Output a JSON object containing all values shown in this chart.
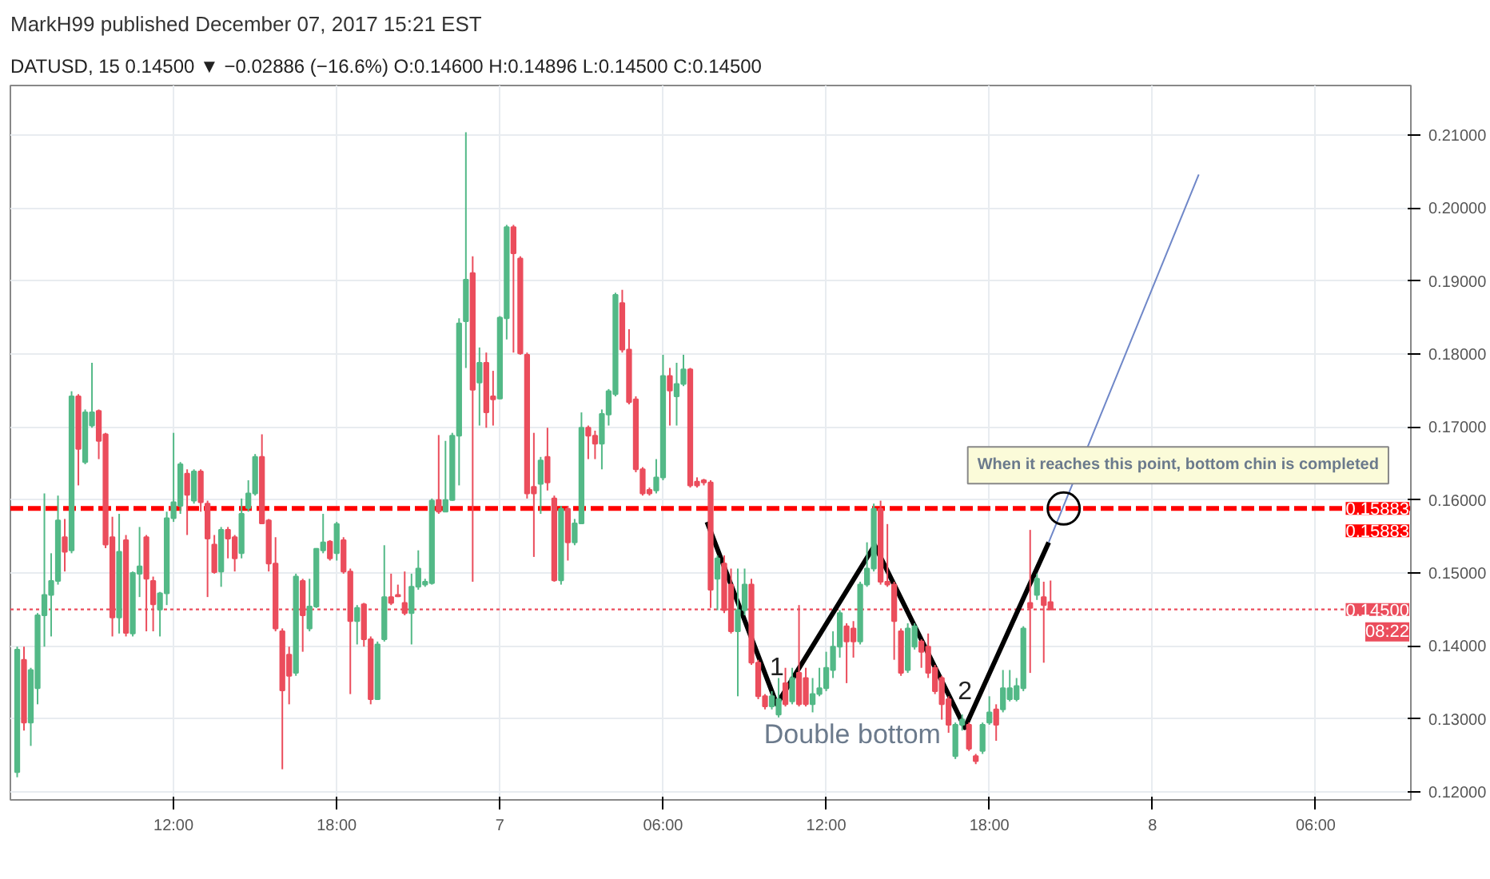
{
  "chart_data": {
    "type": "candlestick",
    "title": "MarkH99 published December 07, 2017 15:21 EST",
    "subtitle": "DATUSD, 15  0.14500 ▼ −0.02886 (−16.6%) O:0.14600 H:0.14896 L:0.14500 C:0.14500",
    "x": [
      "2017-12-06T06:15",
      "2017-12-06T06:30",
      "2017-12-06T06:45",
      "2017-12-06T07:00",
      "2017-12-06T07:15",
      "2017-12-06T07:30",
      "2017-12-06T07:45",
      "2017-12-06T08:00",
      "2017-12-06T08:15",
      "2017-12-06T08:30",
      "2017-12-06T08:45",
      "2017-12-06T09:00",
      "2017-12-06T09:15",
      "2017-12-06T09:30",
      "2017-12-06T09:45",
      "2017-12-06T10:00",
      "2017-12-06T10:15",
      "2017-12-06T10:30",
      "2017-12-06T10:45",
      "2017-12-06T11:00",
      "2017-12-06T11:15",
      "2017-12-06T11:30",
      "2017-12-06T11:45",
      "2017-12-06T12:00",
      "2017-12-06T12:15",
      "2017-12-06T12:30",
      "2017-12-06T12:45",
      "2017-12-06T13:00",
      "2017-12-06T13:15",
      "2017-12-06T13:30",
      "2017-12-06T13:45",
      "2017-12-06T14:00",
      "2017-12-06T14:15",
      "2017-12-06T14:30",
      "2017-12-06T14:45",
      "2017-12-06T15:00",
      "2017-12-06T15:15",
      "2017-12-06T15:30",
      "2017-12-06T15:45",
      "2017-12-06T16:00",
      "2017-12-06T16:15",
      "2017-12-06T16:30",
      "2017-12-06T16:45",
      "2017-12-06T17:00",
      "2017-12-06T17:15",
      "2017-12-06T17:30",
      "2017-12-06T17:45",
      "2017-12-06T18:00",
      "2017-12-06T18:15",
      "2017-12-06T18:30",
      "2017-12-06T18:45",
      "2017-12-06T19:00",
      "2017-12-06T19:15",
      "2017-12-06T19:30",
      "2017-12-06T19:45",
      "2017-12-06T20:00",
      "2017-12-06T20:15",
      "2017-12-06T20:30",
      "2017-12-06T20:45",
      "2017-12-06T21:00",
      "2017-12-06T21:15",
      "2017-12-06T21:30",
      "2017-12-06T21:45",
      "2017-12-06T22:00",
      "2017-12-06T22:15",
      "2017-12-06T22:30",
      "2017-12-06T22:45",
      "2017-12-06T23:00",
      "2017-12-06T23:15",
      "2017-12-06T23:30",
      "2017-12-06T23:45",
      "2017-12-07T00:00",
      "2017-12-07T00:15",
      "2017-12-07T00:30",
      "2017-12-07T00:45",
      "2017-12-07T01:00",
      "2017-12-07T01:15",
      "2017-12-07T01:30",
      "2017-12-07T01:45",
      "2017-12-07T02:00",
      "2017-12-07T02:15",
      "2017-12-07T02:30",
      "2017-12-07T02:45",
      "2017-12-07T03:00",
      "2017-12-07T03:15",
      "2017-12-07T03:30",
      "2017-12-07T03:45",
      "2017-12-07T04:00",
      "2017-12-07T04:15",
      "2017-12-07T04:30",
      "2017-12-07T04:45",
      "2017-12-07T05:00",
      "2017-12-07T05:15",
      "2017-12-07T05:30",
      "2017-12-07T05:45",
      "2017-12-07T06:00",
      "2017-12-07T06:15",
      "2017-12-07T06:30",
      "2017-12-07T06:45",
      "2017-12-07T07:00",
      "2017-12-07T07:15",
      "2017-12-07T07:30",
      "2017-12-07T07:45",
      "2017-12-07T08:00",
      "2017-12-07T08:15",
      "2017-12-07T08:30",
      "2017-12-07T08:45",
      "2017-12-07T09:00",
      "2017-12-07T09:15",
      "2017-12-07T09:30",
      "2017-12-07T09:45",
      "2017-12-07T10:00",
      "2017-12-07T10:15",
      "2017-12-07T10:30",
      "2017-12-07T10:45",
      "2017-12-07T11:00",
      "2017-12-07T11:15",
      "2017-12-07T11:30",
      "2017-12-07T11:45",
      "2017-12-07T12:00",
      "2017-12-07T12:15",
      "2017-12-07T12:30",
      "2017-12-07T12:45",
      "2017-12-07T13:00",
      "2017-12-07T13:15",
      "2017-12-07T13:30",
      "2017-12-07T13:45",
      "2017-12-07T14:00",
      "2017-12-07T14:15",
      "2017-12-07T14:30",
      "2017-12-07T14:45",
      "2017-12-07T15:00",
      "2017-12-07T15:15",
      "2017-12-07T15:30",
      "2017-12-07T15:45",
      "2017-12-07T16:00",
      "2017-12-07T16:15",
      "2017-12-07T16:30",
      "2017-12-07T16:45",
      "2017-12-07T17:00",
      "2017-12-07T17:15",
      "2017-12-07T17:30",
      "2017-12-07T17:45",
      "2017-12-07T18:00",
      "2017-12-07T18:15",
      "2017-12-07T18:30",
      "2017-12-07T18:45",
      "2017-12-07T19:00",
      "2017-12-07T19:15",
      "2017-12-07T19:30",
      "2017-12-07T19:45",
      "2017-12-07T20:00",
      "2017-12-07T20:15"
    ],
    "ohlc": [
      [
        0.1227,
        0.1399,
        0.122,
        0.1395
      ],
      [
        0.1381,
        0.1399,
        0.1284,
        0.1295
      ],
      [
        0.1295,
        0.137,
        0.1263,
        0.1367
      ],
      [
        0.1342,
        0.1445,
        0.132,
        0.1442
      ],
      [
        0.1442,
        0.1609,
        0.1399,
        0.147
      ],
      [
        0.147,
        0.1527,
        0.1413,
        0.1489
      ],
      [
        0.1489,
        0.1606,
        0.1484,
        0.1572
      ],
      [
        0.1549,
        0.1574,
        0.1502,
        0.1529
      ],
      [
        0.1531,
        0.1749,
        0.1527,
        0.1742
      ],
      [
        0.1742,
        0.1745,
        0.162,
        0.167
      ],
      [
        0.1652,
        0.1724,
        0.1649,
        0.172
      ],
      [
        0.1702,
        0.1788,
        0.1699,
        0.172
      ],
      [
        0.1722,
        0.1724,
        0.1656,
        0.1681
      ],
      [
        0.169,
        0.1692,
        0.1534,
        0.1539
      ],
      [
        0.1549,
        0.1577,
        0.1413,
        0.1439
      ],
      [
        0.1439,
        0.1581,
        0.1417,
        0.1529
      ],
      [
        0.1545,
        0.1552,
        0.1413,
        0.1418
      ],
      [
        0.1417,
        0.1502,
        0.1413,
        0.15
      ],
      [
        0.1499,
        0.1563,
        0.1467,
        0.1509
      ],
      [
        0.1549,
        0.1552,
        0.142,
        0.1492
      ],
      [
        0.1489,
        0.1495,
        0.142,
        0.1457
      ],
      [
        0.145,
        0.1474,
        0.1413,
        0.1472
      ],
      [
        0.1472,
        0.1584,
        0.1456,
        0.1575
      ],
      [
        0.1575,
        0.1692,
        0.157,
        0.1597
      ],
      [
        0.1592,
        0.1652,
        0.1581,
        0.1649
      ],
      [
        0.1636,
        0.1642,
        0.1552,
        0.1607
      ],
      [
        0.1599,
        0.1642,
        0.1595,
        0.1639
      ],
      [
        0.1639,
        0.1642,
        0.1584,
        0.1597
      ],
      [
        0.1595,
        0.1599,
        0.1467,
        0.1547
      ],
      [
        0.1539,
        0.1552,
        0.1499,
        0.1501
      ],
      [
        0.1502,
        0.1563,
        0.1481,
        0.1559
      ],
      [
        0.1559,
        0.1563,
        0.152,
        0.1547
      ],
      [
        0.1549,
        0.1552,
        0.1502,
        0.152
      ],
      [
        0.1527,
        0.1602,
        0.152,
        0.1581
      ],
      [
        0.1589,
        0.1627,
        0.1584,
        0.1609
      ],
      [
        0.1609,
        0.1663,
        0.1606,
        0.1659
      ],
      [
        0.1659,
        0.169,
        0.1567,
        0.1568
      ],
      [
        0.1572,
        0.1574,
        0.1502,
        0.1513
      ],
      [
        0.1513,
        0.1549,
        0.142,
        0.1424
      ],
      [
        0.142,
        0.1424,
        0.1231,
        0.1339
      ],
      [
        0.1388,
        0.1399,
        0.132,
        0.1359
      ],
      [
        0.1363,
        0.1499,
        0.1359,
        0.1495
      ],
      [
        0.1489,
        0.1492,
        0.1392,
        0.1442
      ],
      [
        0.1424,
        0.1492,
        0.142,
        0.1454
      ],
      [
        0.1454,
        0.1534,
        0.1452,
        0.1533
      ],
      [
        0.1531,
        0.1581,
        0.1527,
        0.1542
      ],
      [
        0.1543,
        0.1545,
        0.1517,
        0.152
      ],
      [
        0.1527,
        0.157,
        0.1517,
        0.1567
      ],
      [
        0.1545,
        0.1549,
        0.1499,
        0.1502
      ],
      [
        0.1502,
        0.1506,
        0.1334,
        0.1434
      ],
      [
        0.1434,
        0.1456,
        0.1402,
        0.1452
      ],
      [
        0.1457,
        0.1459,
        0.1399,
        0.1409
      ],
      [
        0.1409,
        0.1413,
        0.132,
        0.1327
      ],
      [
        0.1327,
        0.1406,
        0.1327,
        0.1402
      ],
      [
        0.1409,
        0.1538,
        0.1406,
        0.1467
      ],
      [
        0.1467,
        0.1499,
        0.1456,
        0.1459
      ],
      [
        0.147,
        0.1484,
        0.1467,
        0.1468
      ],
      [
        0.1459,
        0.1502,
        0.1442,
        0.1445
      ],
      [
        0.1445,
        0.1499,
        0.1402,
        0.1481
      ],
      [
        0.1481,
        0.1531,
        0.1477,
        0.1506
      ],
      [
        0.1484,
        0.1492,
        0.1481,
        0.1488
      ],
      [
        0.1486,
        0.1602,
        0.1484,
        0.1599
      ],
      [
        0.16,
        0.1689,
        0.1581,
        0.1584
      ],
      [
        0.1584,
        0.1681,
        0.1584,
        0.16
      ],
      [
        0.16,
        0.1692,
        0.1599,
        0.1688
      ],
      [
        0.1688,
        0.1849,
        0.162,
        0.1842
      ],
      [
        0.1845,
        0.2104,
        0.1781,
        0.1902
      ],
      [
        0.1911,
        0.1934,
        0.1488,
        0.1751
      ],
      [
        0.1761,
        0.1809,
        0.1702,
        0.1788
      ],
      [
        0.1788,
        0.1802,
        0.1699,
        0.172
      ],
      [
        0.1742,
        0.1777,
        0.1702,
        0.1738
      ],
      [
        0.1739,
        0.1852,
        0.1738,
        0.185
      ],
      [
        0.1849,
        0.1977,
        0.182,
        0.1974
      ],
      [
        0.1974,
        0.1977,
        0.1802,
        0.1938
      ],
      [
        0.1931,
        0.1934,
        0.1799,
        0.1801
      ],
      [
        0.1799,
        0.1802,
        0.1602,
        0.1609
      ],
      [
        0.1618,
        0.1692,
        0.1522,
        0.1609
      ],
      [
        0.1622,
        0.1659,
        0.1581,
        0.1654
      ],
      [
        0.1659,
        0.1699,
        0.1613,
        0.1624
      ],
      [
        0.1602,
        0.1606,
        0.1488,
        0.149
      ],
      [
        0.149,
        0.1592,
        0.1484,
        0.1588
      ],
      [
        0.1588,
        0.1592,
        0.1517,
        0.1542
      ],
      [
        0.1542,
        0.1574,
        0.1538,
        0.1568
      ],
      [
        0.1568,
        0.172,
        0.1567,
        0.1699
      ],
      [
        0.1699,
        0.1702,
        0.1656,
        0.1688
      ],
      [
        0.1688,
        0.1695,
        0.1656,
        0.1677
      ],
      [
        0.1677,
        0.1724,
        0.1642,
        0.1718
      ],
      [
        0.1717,
        0.1752,
        0.1702,
        0.1749
      ],
      [
        0.1745,
        0.1884,
        0.1742,
        0.1881
      ],
      [
        0.187,
        0.1888,
        0.1802,
        0.1806
      ],
      [
        0.1806,
        0.1834,
        0.1731,
        0.1734
      ],
      [
        0.1738,
        0.1742,
        0.1638,
        0.1642
      ],
      [
        0.1642,
        0.1645,
        0.1606,
        0.1609
      ],
      [
        0.1614,
        0.1617,
        0.1606,
        0.1609
      ],
      [
        0.1613,
        0.1656,
        0.1609,
        0.1631
      ],
      [
        0.1631,
        0.1799,
        0.1627,
        0.177
      ],
      [
        0.177,
        0.1781,
        0.1702,
        0.175
      ],
      [
        0.1742,
        0.1788,
        0.1702,
        0.1759
      ],
      [
        0.1759,
        0.1799,
        0.1756,
        0.1779
      ],
      [
        0.1779,
        0.1781,
        0.1617,
        0.162
      ],
      [
        0.1625,
        0.1631,
        0.1617,
        0.162
      ],
      [
        0.1627,
        0.1629,
        0.162,
        0.1624
      ],
      [
        0.1624,
        0.1627,
        0.1452,
        0.1477
      ],
      [
        0.1492,
        0.1524,
        0.1449,
        0.152
      ],
      [
        0.1513,
        0.1524,
        0.1445,
        0.1449
      ],
      [
        0.1484,
        0.1506,
        0.1417,
        0.142
      ],
      [
        0.142,
        0.1506,
        0.1331,
        0.1449
      ],
      [
        0.1449,
        0.1506,
        0.1442,
        0.1484
      ],
      [
        0.1484,
        0.1492,
        0.1374,
        0.1377
      ],
      [
        0.1377,
        0.1381,
        0.1327,
        0.1331
      ],
      [
        0.1331,
        0.1334,
        0.1313,
        0.1317
      ],
      [
        0.1317,
        0.1338,
        0.1313,
        0.1331
      ],
      [
        0.1306,
        0.1356,
        0.1302,
        0.1327
      ],
      [
        0.1349,
        0.137,
        0.1317,
        0.132
      ],
      [
        0.1324,
        0.137,
        0.132,
        0.1356
      ],
      [
        0.1363,
        0.1456,
        0.1317,
        0.132
      ],
      [
        0.1356,
        0.137,
        0.1317,
        0.132
      ],
      [
        0.132,
        0.1356,
        0.1309,
        0.1334
      ],
      [
        0.1334,
        0.137,
        0.1331,
        0.1342
      ],
      [
        0.1342,
        0.1392,
        0.1338,
        0.137
      ],
      [
        0.1367,
        0.142,
        0.1356,
        0.1399
      ],
      [
        0.1399,
        0.1449,
        0.1384,
        0.1445
      ],
      [
        0.1427,
        0.1431,
        0.1349,
        0.1406
      ],
      [
        0.1424,
        0.1434,
        0.1384,
        0.1406
      ],
      [
        0.1406,
        0.1488,
        0.1402,
        0.1484
      ],
      [
        0.1484,
        0.1542,
        0.1481,
        0.1506
      ],
      [
        0.1506,
        0.1595,
        0.1502,
        0.1588
      ],
      [
        0.1588,
        0.1599,
        0.1484,
        0.1488
      ],
      [
        0.1488,
        0.1567,
        0.1481,
        0.1484
      ],
      [
        0.1484,
        0.1488,
        0.1381,
        0.1434
      ],
      [
        0.142,
        0.1424,
        0.1359,
        0.1363
      ],
      [
        0.1367,
        0.1431,
        0.1363,
        0.1424
      ],
      [
        0.1399,
        0.1431,
        0.1395,
        0.1427
      ],
      [
        0.1406,
        0.1409,
        0.137,
        0.1392
      ],
      [
        0.1399,
        0.1417,
        0.1356,
        0.1363
      ],
      [
        0.137,
        0.1374,
        0.1334,
        0.1338
      ],
      [
        0.1356,
        0.1359,
        0.1299,
        0.132
      ],
      [
        0.1327,
        0.1331,
        0.1281,
        0.1292
      ],
      [
        0.1249,
        0.1295,
        0.1245,
        0.1292
      ],
      [
        0.1292,
        0.1306,
        0.1284,
        0.1299
      ],
      [
        0.1292,
        0.1295,
        0.1256,
        0.1259
      ],
      [
        0.1249,
        0.1252,
        0.1238,
        0.1242
      ],
      [
        0.1256,
        0.1295,
        0.1252,
        0.1292
      ],
      [
        0.1295,
        0.1331,
        0.1292,
        0.1309
      ],
      [
        0.1313,
        0.132,
        0.127,
        0.1292
      ],
      [
        0.1313,
        0.1367,
        0.1309,
        0.1342
      ],
      [
        0.1327,
        0.1367,
        0.1324,
        0.1342
      ],
      [
        0.1327,
        0.1356,
        0.1324,
        0.1345
      ],
      [
        0.1342,
        0.1427,
        0.1338,
        0.1424
      ],
      [
        0.1459,
        0.1559,
        0.1363,
        0.1452
      ],
      [
        0.147,
        0.1499,
        0.1463,
        0.1492
      ],
      [
        0.1467,
        0.1488,
        0.1377,
        0.1456
      ],
      [
        0.146,
        0.14896,
        0.145,
        0.145
      ]
    ],
    "colors": [
      "#53b987",
      "#eb4d5c",
      "#53b987",
      "#53b987",
      "#53b987",
      "#53b987",
      "#53b987",
      "#eb4d5c",
      "#53b987",
      "#eb4d5c",
      "#53b987",
      "#53b987",
      "#eb4d5c",
      "#eb4d5c",
      "#eb4d5c",
      "#53b987",
      "#eb4d5c",
      "#53b987",
      "#53b987",
      "#eb4d5c",
      "#eb4d5c",
      "#53b987",
      "#53b987",
      "#53b987",
      "#53b987",
      "#eb4d5c",
      "#53b987",
      "#eb4d5c",
      "#eb4d5c",
      "#eb4d5c",
      "#53b987",
      "#eb4d5c",
      "#eb4d5c",
      "#53b987",
      "#53b987",
      "#53b987",
      "#eb4d5c",
      "#eb4d5c",
      "#eb4d5c",
      "#eb4d5c",
      "#eb4d5c",
      "#53b987",
      "#eb4d5c",
      "#53b987",
      "#53b987",
      "#53b987",
      "#eb4d5c",
      "#53b987",
      "#eb4d5c",
      "#eb4d5c",
      "#53b987",
      "#eb4d5c",
      "#eb4d5c",
      "#53b987",
      "#53b987",
      "#eb4d5c",
      "#eb4d5c",
      "#eb4d5c",
      "#53b987",
      "#53b987",
      "#53b987",
      "#53b987",
      "#eb4d5c",
      "#53b987",
      "#53b987",
      "#53b987",
      "#53b987",
      "#eb4d5c",
      "#53b987",
      "#eb4d5c",
      "#eb4d5c",
      "#53b987",
      "#53b987",
      "#eb4d5c",
      "#eb4d5c",
      "#eb4d5c",
      "#eb4d5c",
      "#53b987",
      "#eb4d5c",
      "#eb4d5c",
      "#53b987",
      "#eb4d5c",
      "#53b987",
      "#53b987",
      "#eb4d5c",
      "#eb4d5c",
      "#53b987",
      "#53b987",
      "#53b987",
      "#eb4d5c",
      "#eb4d5c",
      "#eb4d5c",
      "#eb4d5c",
      "#eb4d5c",
      "#53b987",
      "#53b987",
      "#eb4d5c",
      "#53b987",
      "#53b987",
      "#eb4d5c",
      "#eb4d5c",
      "#eb4d5c",
      "#eb4d5c",
      "#53b987",
      "#eb4d5c",
      "#eb4d5c",
      "#53b987",
      "#53b987",
      "#eb4d5c",
      "#eb4d5c",
      "#eb4d5c",
      "#53b987",
      "#53b987",
      "#eb4d5c",
      "#53b987",
      "#eb4d5c",
      "#eb4d5c",
      "#53b987",
      "#53b987",
      "#53b987",
      "#53b987",
      "#53b987",
      "#eb4d5c",
      "#eb4d5c",
      "#53b987",
      "#53b987",
      "#53b987",
      "#eb4d5c",
      "#eb4d5c",
      "#eb4d5c",
      "#eb4d5c",
      "#53b987",
      "#53b987",
      "#eb4d5c",
      "#eb4d5c",
      "#eb4d5c",
      "#eb4d5c",
      "#eb4d5c",
      "#53b987",
      "#53b987",
      "#eb4d5c",
      "#eb4d5c",
      "#53b987",
      "#53b987",
      "#eb4d5c",
      "#53b987",
      "#53b987",
      "#53b987",
      "#53b987",
      "#eb4d5c",
      "#53b987",
      "#eb4d5c",
      "#eb4d5c"
    ],
    "series": [
      {
        "type": "line",
        "color": "#000000",
        "x": [
          "2017-12-07T07:37",
          "2017-12-07T10:11",
          "2017-12-07T13:47",
          "2017-12-07T17:06",
          "2017-12-07T20:11"
        ],
        "values": [
          0.157,
          0.132,
          0.1538,
          0.1288,
          0.1542
        ]
      },
      {
        "type": "line",
        "color": "#6f87c8",
        "x": [
          "2017-12-07T20:11",
          "2017-12-08T01:42"
        ],
        "values": [
          0.1542,
          0.2046
        ]
      }
    ],
    "xlim": [
      "2017-12-06T06:00",
      "2017-12-08T09:30"
    ],
    "ylim": [
      0.1189,
      0.2168
    ],
    "xticks": [
      {
        "value": "2017-12-06T12:00",
        "label": "12:00"
      },
      {
        "value": "2017-12-06T18:00",
        "label": "18:00"
      },
      {
        "value": "2017-12-07T00:00",
        "label": "7"
      },
      {
        "value": "2017-12-07T06:00",
        "label": "06:00"
      },
      {
        "value": "2017-12-07T12:00",
        "label": "12:00"
      },
      {
        "value": "2017-12-07T18:00",
        "label": "18:00"
      },
      {
        "value": "2017-12-08T00:00",
        "label": "8"
      },
      {
        "value": "2017-12-08T06:00",
        "label": "06:00"
      }
    ],
    "yticks": [
      {
        "value": 0.12,
        "label": "0.12000"
      },
      {
        "value": 0.13,
        "label": "0.13000"
      },
      {
        "value": 0.14,
        "label": "0.14000"
      },
      {
        "value": 0.15,
        "label": "0.15000"
      },
      {
        "value": 0.16,
        "label": "0.16000"
      },
      {
        "value": 0.17,
        "label": "0.17000"
      },
      {
        "value": 0.18,
        "label": "0.18000"
      },
      {
        "value": 0.19,
        "label": "0.19000"
      },
      {
        "value": 0.2,
        "label": "0.20000"
      },
      {
        "value": 0.21,
        "label": "0.21000"
      }
    ],
    "ref_lines": [
      {
        "axis": "y",
        "value": 0.15883,
        "label": "0.15883",
        "color": "#ff0000",
        "line_style": "dashed"
      },
      {
        "axis": "y",
        "value": 0.145,
        "label": "0.14500",
        "color": "#eb4d5c",
        "line_style": "dotted"
      }
    ],
    "annotations": [
      "0.15883",
      "08:22",
      {
        "text": "1",
        "x": "2017-12-07T10:11",
        "y": 0.132
      },
      {
        "text": "2",
        "x": "2017-12-07T17:06",
        "y": 0.1288
      },
      {
        "text": "Double bottom",
        "x": "2017-12-07T10:11",
        "y": 0.132
      },
      {
        "text": "When it reaches this point, bottom chin is completed",
        "x": "2017-12-07T20:44",
        "y": 0.15883
      }
    ],
    "grid": true
  }
}
